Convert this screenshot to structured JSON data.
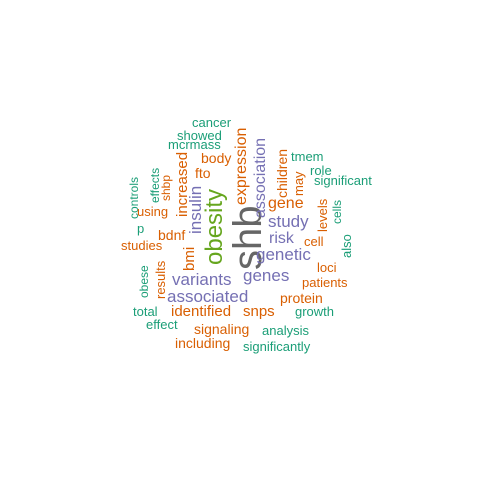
{
  "colors": {
    "teal": "#1b9e77",
    "orange": "#d95f02",
    "purple": "#7570b3",
    "green": "#66a61e",
    "gray": "#666666"
  },
  "words": [
    {
      "text": "shb",
      "color": "gray"
    },
    {
      "text": "obesity",
      "color": "green"
    },
    {
      "text": "insulin",
      "color": "purple"
    },
    {
      "text": "bmi",
      "color": "orange"
    },
    {
      "text": "increased",
      "color": "orange"
    },
    {
      "text": "expression",
      "color": "orange"
    },
    {
      "text": "association",
      "color": "purple"
    },
    {
      "text": "children",
      "color": "orange"
    },
    {
      "text": "may",
      "color": "orange"
    },
    {
      "text": "levels",
      "color": "orange"
    },
    {
      "text": "cells",
      "color": "teal"
    },
    {
      "text": "also",
      "color": "teal"
    },
    {
      "text": "controls",
      "color": "teal"
    },
    {
      "text": "effects",
      "color": "teal"
    },
    {
      "text": "shbp",
      "color": "orange"
    },
    {
      "text": "results",
      "color": "orange"
    },
    {
      "text": "obese",
      "color": "teal"
    },
    {
      "text": "cancer",
      "color": "teal"
    },
    {
      "text": "showed",
      "color": "teal"
    },
    {
      "text": "mcrmass",
      "color": "teal"
    },
    {
      "text": "body",
      "color": "orange"
    },
    {
      "text": "fto",
      "color": "orange"
    },
    {
      "text": "tmem",
      "color": "teal"
    },
    {
      "text": "role",
      "color": "teal"
    },
    {
      "text": "significant",
      "color": "teal"
    },
    {
      "text": "using",
      "color": "orange"
    },
    {
      "text": "gene",
      "color": "orange"
    },
    {
      "text": "study",
      "color": "purple"
    },
    {
      "text": "p",
      "color": "teal"
    },
    {
      "text": "bdnf",
      "color": "orange"
    },
    {
      "text": "risk",
      "color": "purple"
    },
    {
      "text": "cell",
      "color": "orange"
    },
    {
      "text": "studies",
      "color": "orange"
    },
    {
      "text": "genetic",
      "color": "purple"
    },
    {
      "text": "loci",
      "color": "orange"
    },
    {
      "text": "variants",
      "color": "purple"
    },
    {
      "text": "genes",
      "color": "purple"
    },
    {
      "text": "patients",
      "color": "orange"
    },
    {
      "text": "associated",
      "color": "purple"
    },
    {
      "text": "protein",
      "color": "orange"
    },
    {
      "text": "total",
      "color": "teal"
    },
    {
      "text": "identified",
      "color": "orange"
    },
    {
      "text": "snps",
      "color": "orange"
    },
    {
      "text": "growth",
      "color": "teal"
    },
    {
      "text": "effect",
      "color": "teal"
    },
    {
      "text": "signaling",
      "color": "orange"
    },
    {
      "text": "analysis",
      "color": "teal"
    },
    {
      "text": "including",
      "color": "orange"
    },
    {
      "text": "significantly",
      "color": "teal"
    }
  ]
}
